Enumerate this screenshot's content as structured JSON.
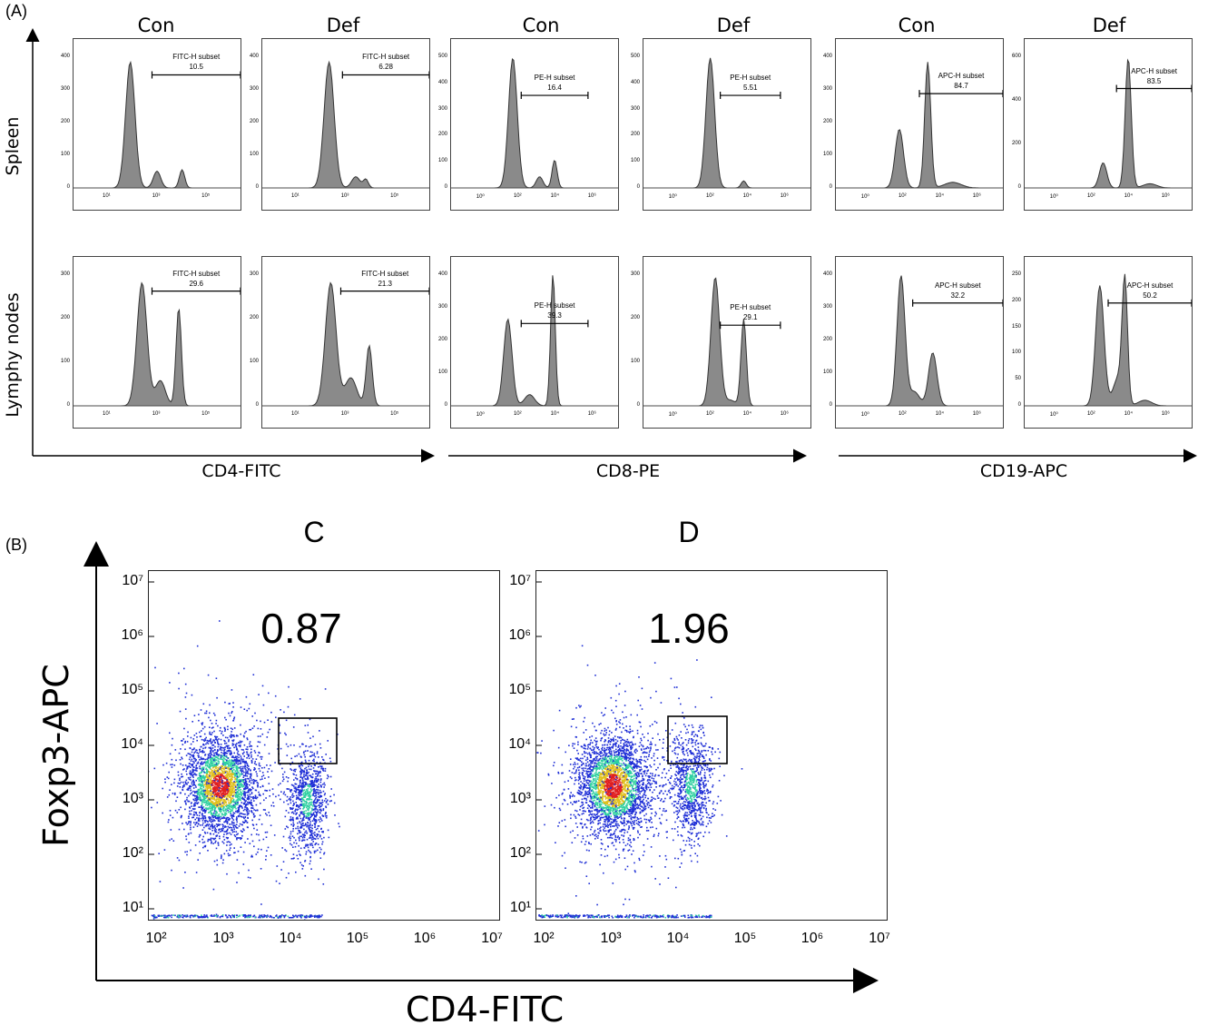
{
  "panel_a": {
    "label": "(A)",
    "columns": [
      "Con",
      "Def",
      "Con",
      "Def",
      "Con",
      "Def"
    ],
    "rows": [
      "Spleen",
      "Lymphy nodes"
    ],
    "x_axes": [
      "CD4-FITC",
      "CD8-PE",
      "CD19-APC"
    ],
    "histograms": [
      {
        "row": 0,
        "col": 0,
        "gate": "FITC-H subset",
        "value": "10.5",
        "yticks": [
          "400",
          "300",
          "200",
          "100",
          "0"
        ],
        "xticks": [
          "10¹",
          "10³",
          "10⁵"
        ]
      },
      {
        "row": 0,
        "col": 1,
        "gate": "FITC-H subset",
        "value": "6.28",
        "yticks": [
          "400",
          "300",
          "200",
          "100",
          "0"
        ],
        "xticks": [
          "10¹",
          "10³",
          "10⁵"
        ]
      },
      {
        "row": 0,
        "col": 2,
        "gate": "PE-H subset",
        "value": "16.4",
        "yticks": [
          "500",
          "400",
          "300",
          "200",
          "100",
          "0"
        ],
        "xticks": [
          "10⁰",
          "10²",
          "10⁴",
          "10⁶"
        ]
      },
      {
        "row": 0,
        "col": 3,
        "gate": "PE-H subset",
        "value": "5.51",
        "yticks": [
          "500",
          "400",
          "300",
          "200",
          "100",
          "0"
        ],
        "xticks": [
          "10⁰",
          "10²",
          "10⁴",
          "10⁶"
        ]
      },
      {
        "row": 0,
        "col": 4,
        "gate": "APC-H subset",
        "value": "84.7",
        "yticks": [
          "400",
          "300",
          "200",
          "100",
          "0"
        ],
        "xticks": [
          "10⁰",
          "10²",
          "10⁴",
          "10⁶"
        ]
      },
      {
        "row": 0,
        "col": 5,
        "gate": "APC-H subset",
        "value": "83.5",
        "yticks": [
          "600",
          "400",
          "200",
          "0"
        ],
        "xticks": [
          "10⁰",
          "10²",
          "10⁴",
          "10⁶"
        ]
      },
      {
        "row": 1,
        "col": 0,
        "gate": "FITC-H subset",
        "value": "29.6",
        "yticks": [
          "300",
          "200",
          "100",
          "0"
        ],
        "xticks": [
          "10¹",
          "10³",
          "10⁵"
        ]
      },
      {
        "row": 1,
        "col": 1,
        "gate": "FITC-H subset",
        "value": "21.3",
        "yticks": [
          "300",
          "200",
          "100",
          "0"
        ],
        "xticks": [
          "10¹",
          "10³",
          "10⁵"
        ]
      },
      {
        "row": 1,
        "col": 2,
        "gate": "PE-H subset",
        "value": "39.3",
        "yticks": [
          "400",
          "300",
          "200",
          "100",
          "0"
        ],
        "xticks": [
          "10⁰",
          "10²",
          "10⁴",
          "10⁶"
        ]
      },
      {
        "row": 1,
        "col": 3,
        "gate": "PE-H subset",
        "value": "29.1",
        "yticks": [
          "300",
          "200",
          "100",
          "0"
        ],
        "xticks": [
          "10⁰",
          "10²",
          "10⁴",
          "10⁶"
        ]
      },
      {
        "row": 1,
        "col": 4,
        "gate": "APC-H subset",
        "value": "32.2",
        "yticks": [
          "400",
          "300",
          "200",
          "100",
          "0"
        ],
        "xticks": [
          "10⁰",
          "10²",
          "10⁴",
          "10⁶"
        ]
      },
      {
        "row": 1,
        "col": 5,
        "gate": "APC-H subset",
        "value": "50.2",
        "yticks": [
          "250",
          "200",
          "150",
          "100",
          "50",
          "0"
        ],
        "xticks": [
          "10⁰",
          "10²",
          "10⁴",
          "10⁶"
        ]
      }
    ]
  },
  "panel_b": {
    "label": "(B)",
    "x_axis": "CD4-FITC",
    "y_axis": "Foxp3-APC",
    "plots": [
      {
        "head": "C",
        "value": "0.87"
      },
      {
        "head": "D",
        "value": "1.96"
      }
    ],
    "yticks": [
      "10⁷",
      "10⁶",
      "10⁵",
      "10⁴",
      "10³",
      "10²",
      "10¹"
    ],
    "xticks": [
      "10²",
      "10³",
      "10⁴",
      "10⁵",
      "10⁶",
      "10⁷"
    ]
  },
  "colors": {
    "fill": "#8a8a8a",
    "line": "#333333",
    "dot_low": "#1f2fd6",
    "dot_mid": "#2fd0a0",
    "dot_high": "#e02020"
  }
}
